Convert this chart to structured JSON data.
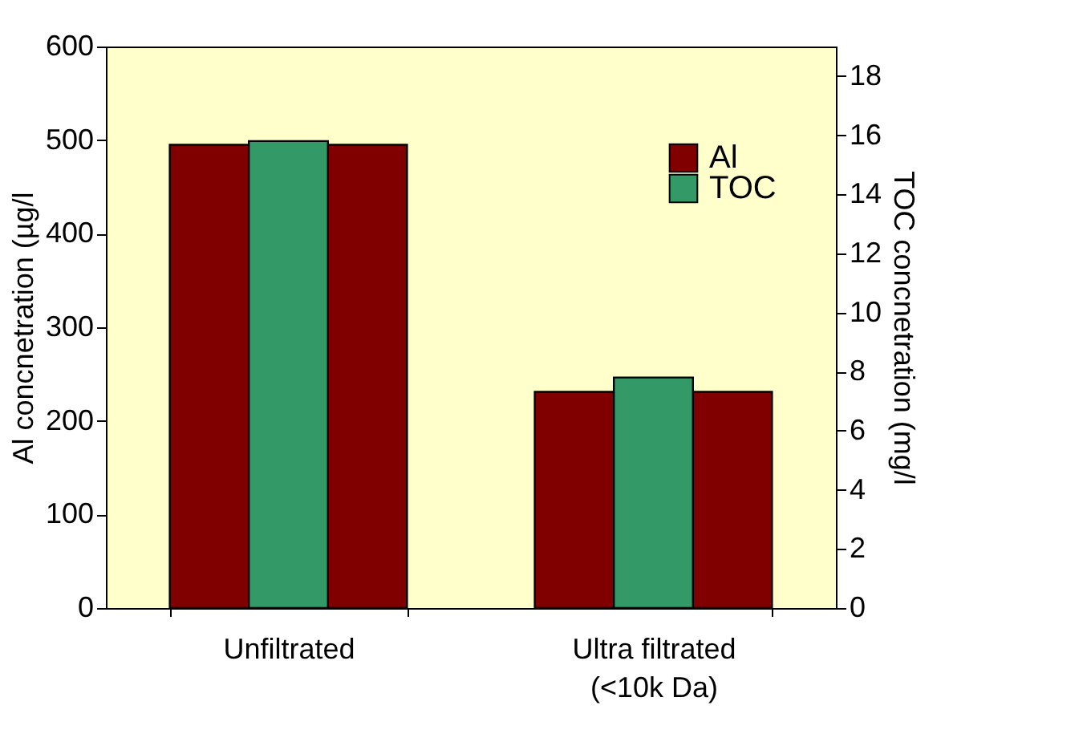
{
  "chart_data": {
    "type": "bar",
    "categories": [
      "Unfiltrated",
      "Ultra filtrated\n(<10k Da)"
    ],
    "series": [
      {
        "name": "Al",
        "color": "#800000",
        "values": [
          495,
          231
        ]
      },
      {
        "name": "TOC",
        "color": "#339966",
        "values": [
          15.8,
          7.8
        ],
        "axis": "y2"
      },
      {
        "color": "#800000",
        "values": [
          495,
          231
        ]
      }
    ],
    "ylabel": "Al concnetration (µg/l",
    "y2label": "TOC concnetration (mg/l",
    "ylim": [
      0,
      600
    ],
    "yticks": [
      0,
      100,
      200,
      300,
      400,
      500,
      600
    ],
    "y2lim": [
      0,
      19
    ],
    "y2ticks": [
      0,
      2,
      4,
      6,
      8,
      10,
      12,
      14,
      16,
      18
    ],
    "legend": "top right",
    "grid": false
  }
}
